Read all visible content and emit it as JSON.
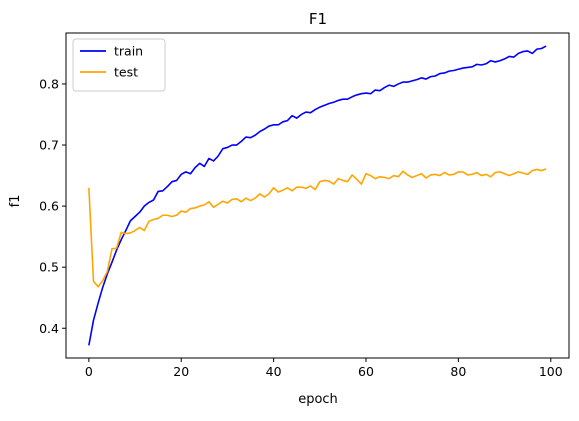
{
  "chart_data": {
    "type": "line",
    "title": "F1",
    "xlabel": "epoch",
    "ylabel": "f1",
    "xlim": [
      -4.95,
      103.95
    ],
    "ylim": [
      0.3513,
      0.8834
    ],
    "xticks": [
      0,
      20,
      40,
      60,
      80,
      100
    ],
    "yticks": [
      0.4,
      0.5,
      0.6,
      0.7,
      0.8
    ],
    "xtick_labels": [
      "0",
      "20",
      "40",
      "60",
      "80",
      "100"
    ],
    "ytick_labels": [
      "0.4",
      "0.5",
      "0.6",
      "0.7",
      "0.8"
    ],
    "grid": false,
    "legend_position": "top-left",
    "series": [
      {
        "name": "train",
        "color": "#0000ff",
        "x": [
          0,
          1,
          2,
          3,
          4,
          5,
          6,
          7,
          8,
          9,
          10,
          11,
          12,
          13,
          14,
          15,
          16,
          17,
          18,
          19,
          20,
          21,
          22,
          23,
          24,
          25,
          26,
          27,
          28,
          29,
          30,
          31,
          32,
          33,
          34,
          35,
          36,
          37,
          38,
          39,
          40,
          41,
          42,
          43,
          44,
          45,
          46,
          47,
          48,
          49,
          50,
          51,
          52,
          53,
          54,
          55,
          56,
          57,
          58,
          59,
          60,
          61,
          62,
          63,
          64,
          65,
          66,
          67,
          68,
          69,
          70,
          71,
          72,
          73,
          74,
          75,
          76,
          77,
          78,
          79,
          80,
          81,
          82,
          83,
          84,
          85,
          86,
          87,
          88,
          89,
          90,
          91,
          92,
          93,
          94,
          95,
          96,
          97,
          98,
          99
        ],
        "y": [
          0.372,
          0.413,
          0.441,
          0.467,
          0.489,
          0.508,
          0.528,
          0.545,
          0.56,
          0.576,
          0.583,
          0.59,
          0.6,
          0.606,
          0.61,
          0.624,
          0.625,
          0.632,
          0.64,
          0.642,
          0.652,
          0.656,
          0.653,
          0.663,
          0.67,
          0.665,
          0.678,
          0.674,
          0.682,
          0.694,
          0.696,
          0.7,
          0.7,
          0.706,
          0.713,
          0.712,
          0.716,
          0.722,
          0.726,
          0.731,
          0.733,
          0.733,
          0.738,
          0.74,
          0.748,
          0.744,
          0.75,
          0.754,
          0.753,
          0.758,
          0.762,
          0.765,
          0.768,
          0.77,
          0.773,
          0.775,
          0.775,
          0.779,
          0.782,
          0.784,
          0.785,
          0.784,
          0.79,
          0.789,
          0.794,
          0.798,
          0.796,
          0.8,
          0.803,
          0.803,
          0.805,
          0.807,
          0.81,
          0.808,
          0.812,
          0.813,
          0.817,
          0.818,
          0.821,
          0.822,
          0.824,
          0.826,
          0.827,
          0.828,
          0.832,
          0.831,
          0.833,
          0.838,
          0.836,
          0.838,
          0.841,
          0.845,
          0.844,
          0.85,
          0.853,
          0.854,
          0.85,
          0.857,
          0.858,
          0.862
        ]
      },
      {
        "name": "test",
        "color": "#ffa500",
        "x": [
          0,
          1,
          2,
          3,
          4,
          5,
          6,
          7,
          8,
          9,
          10,
          11,
          12,
          13,
          14,
          15,
          16,
          17,
          18,
          19,
          20,
          21,
          22,
          23,
          24,
          25,
          26,
          27,
          28,
          29,
          30,
          31,
          32,
          33,
          34,
          35,
          36,
          37,
          38,
          39,
          40,
          41,
          42,
          43,
          44,
          45,
          46,
          47,
          48,
          49,
          50,
          51,
          52,
          53,
          54,
          55,
          56,
          57,
          58,
          59,
          60,
          61,
          62,
          63,
          64,
          65,
          66,
          67,
          68,
          69,
          70,
          71,
          72,
          73,
          74,
          75,
          76,
          77,
          78,
          79,
          80,
          81,
          82,
          83,
          84,
          85,
          86,
          87,
          88,
          89,
          90,
          91,
          92,
          93,
          94,
          95,
          96,
          97,
          98,
          99
        ],
        "y": [
          0.63,
          0.477,
          0.468,
          0.478,
          0.493,
          0.53,
          0.531,
          0.557,
          0.555,
          0.556,
          0.56,
          0.565,
          0.56,
          0.575,
          0.578,
          0.58,
          0.585,
          0.585,
          0.583,
          0.585,
          0.592,
          0.59,
          0.596,
          0.597,
          0.6,
          0.602,
          0.607,
          0.598,
          0.603,
          0.608,
          0.605,
          0.611,
          0.612,
          0.607,
          0.613,
          0.609,
          0.613,
          0.62,
          0.615,
          0.62,
          0.63,
          0.623,
          0.626,
          0.63,
          0.625,
          0.631,
          0.631,
          0.629,
          0.633,
          0.627,
          0.64,
          0.642,
          0.641,
          0.636,
          0.645,
          0.642,
          0.64,
          0.651,
          0.644,
          0.636,
          0.653,
          0.65,
          0.645,
          0.648,
          0.647,
          0.645,
          0.65,
          0.648,
          0.657,
          0.651,
          0.647,
          0.65,
          0.653,
          0.646,
          0.651,
          0.652,
          0.65,
          0.655,
          0.651,
          0.652,
          0.656,
          0.656,
          0.651,
          0.652,
          0.655,
          0.65,
          0.652,
          0.648,
          0.655,
          0.656,
          0.653,
          0.65,
          0.653,
          0.656,
          0.654,
          0.652,
          0.658,
          0.66,
          0.658,
          0.661
        ]
      }
    ]
  }
}
